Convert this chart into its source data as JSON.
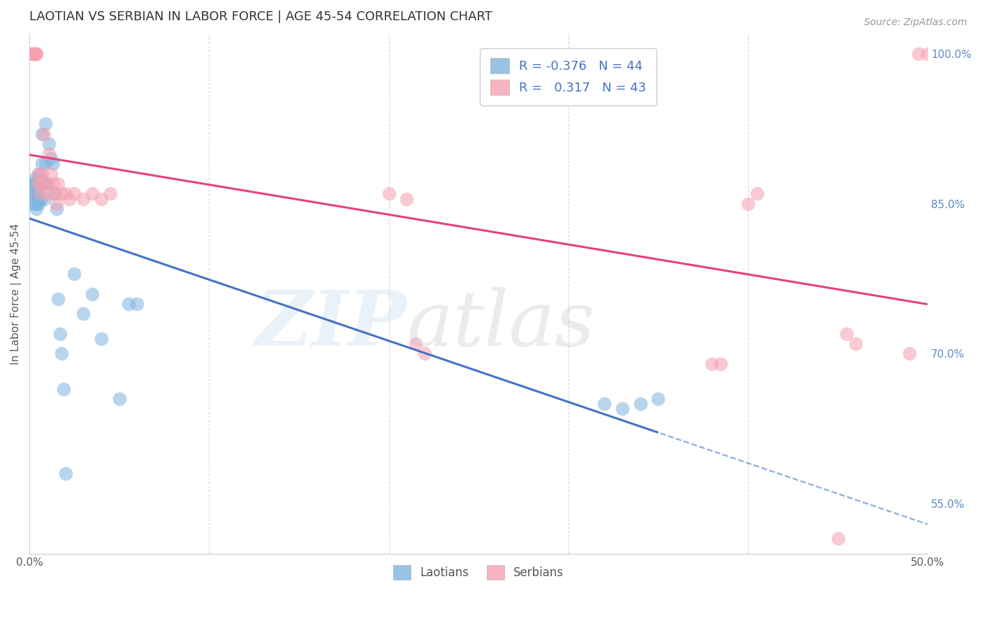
{
  "title": "LAOTIAN VS SERBIAN IN LABOR FORCE | AGE 45-54 CORRELATION CHART",
  "source": "Source: ZipAtlas.com",
  "ylabel": "In Labor Force | Age 45-54",
  "xlim": [
    0.0,
    0.5
  ],
  "ylim": [
    0.5,
    1.02
  ],
  "xticks": [
    0.0,
    0.1,
    0.2,
    0.3,
    0.4,
    0.5
  ],
  "xtick_labels": [
    "0.0%",
    "",
    "",
    "",
    "",
    "50.0%"
  ],
  "right_yticks": [
    0.55,
    0.7,
    0.85,
    1.0
  ],
  "right_ytick_labels": [
    "55.0%",
    "70.0%",
    "85.0%",
    "100.0%"
  ],
  "background_color": "#ffffff",
  "grid_color": "#cccccc",
  "laotian_color": "#7EB3E0",
  "serbian_color": "#F5A0B0",
  "laotian_R": -0.376,
  "laotian_N": 44,
  "serbian_R": 0.317,
  "serbian_N": 43,
  "laotian_line_color": "#4472C4",
  "serbian_line_color": "#E8417A",
  "legend_text_color": "#4472C4",
  "laotian_x": [
    0.001,
    0.002,
    0.002,
    0.003,
    0.003,
    0.003,
    0.004,
    0.004,
    0.004,
    0.004,
    0.005,
    0.005,
    0.005,
    0.006,
    0.006,
    0.006,
    0.007,
    0.007,
    0.008,
    0.008,
    0.009,
    0.009,
    0.01,
    0.011,
    0.012,
    0.013,
    0.014,
    0.015,
    0.016,
    0.017,
    0.018,
    0.019,
    0.02,
    0.025,
    0.03,
    0.035,
    0.04,
    0.05,
    0.055,
    0.06,
    0.32,
    0.33,
    0.34,
    0.35
  ],
  "laotian_y": [
    0.87,
    0.86,
    0.85,
    0.875,
    0.87,
    0.865,
    0.86,
    0.855,
    0.85,
    0.845,
    0.88,
    0.86,
    0.85,
    0.875,
    0.87,
    0.855,
    0.92,
    0.89,
    0.87,
    0.855,
    0.93,
    0.89,
    0.87,
    0.91,
    0.895,
    0.89,
    0.86,
    0.845,
    0.755,
    0.72,
    0.7,
    0.665,
    0.58,
    0.78,
    0.74,
    0.76,
    0.715,
    0.655,
    0.75,
    0.75,
    0.65,
    0.645,
    0.65,
    0.655
  ],
  "serbian_x": [
    0.001,
    0.002,
    0.002,
    0.003,
    0.003,
    0.004,
    0.004,
    0.005,
    0.005,
    0.006,
    0.006,
    0.007,
    0.008,
    0.009,
    0.01,
    0.011,
    0.012,
    0.013,
    0.014,
    0.015,
    0.016,
    0.018,
    0.02,
    0.022,
    0.025,
    0.03,
    0.035,
    0.04,
    0.045,
    0.2,
    0.21,
    0.215,
    0.22,
    0.38,
    0.385,
    0.4,
    0.405,
    0.45,
    0.455,
    0.46,
    0.49,
    0.495,
    0.5
  ],
  "serbian_y": [
    1.0,
    1.0,
    1.0,
    1.0,
    1.0,
    1.0,
    1.0,
    0.88,
    0.87,
    0.87,
    0.86,
    0.88,
    0.92,
    0.87,
    0.86,
    0.9,
    0.88,
    0.87,
    0.86,
    0.85,
    0.87,
    0.86,
    0.86,
    0.855,
    0.86,
    0.855,
    0.86,
    0.855,
    0.86,
    0.86,
    0.855,
    0.71,
    0.7,
    0.69,
    0.69,
    0.85,
    0.86,
    0.515,
    0.72,
    0.71,
    0.7,
    1.0,
    1.0
  ]
}
